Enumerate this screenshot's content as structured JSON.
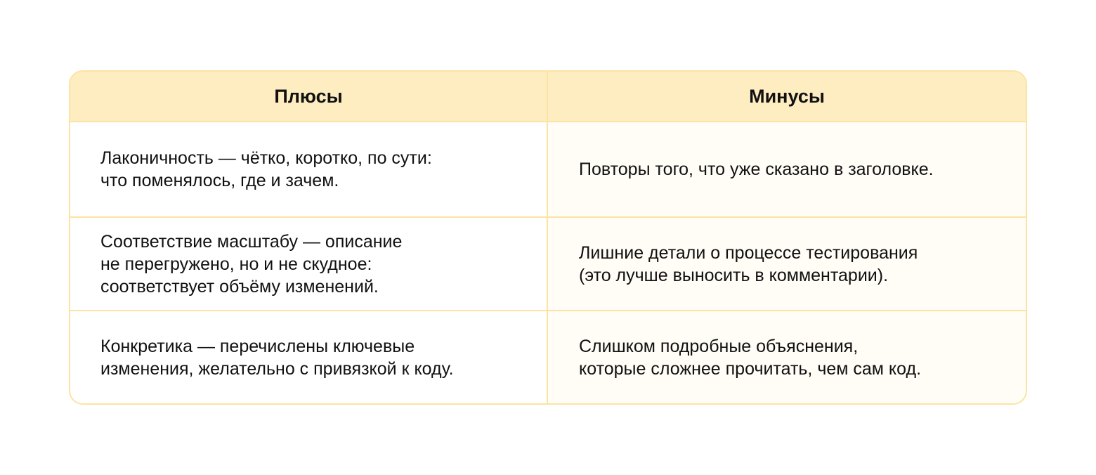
{
  "table": {
    "headers": [
      "Плюсы",
      "Минусы"
    ],
    "rows": [
      [
        "Лаконичность — чётко, коротко, по сути:\nчто поменялось, где и зачем.",
        "Повторы того, что уже сказано в заголовке."
      ],
      [
        "Соответствие масштабу — описание\nне перегружено, но и не скудное:\nсоответствует объёму изменений.",
        "Лишние детали о процессе тестирования\n(это лучше выносить в комментарии)."
      ],
      [
        "Конкретика — перечислены ключевые\nизменения, желательно с привязкой к коду.",
        "Слишком подробные объяснения,\nкоторые сложнее прочитать, чем сам код."
      ]
    ]
  },
  "colors": {
    "header_bg": "#feedc1",
    "border": "#fde3a3",
    "minus_bg": "#fffdf6"
  }
}
